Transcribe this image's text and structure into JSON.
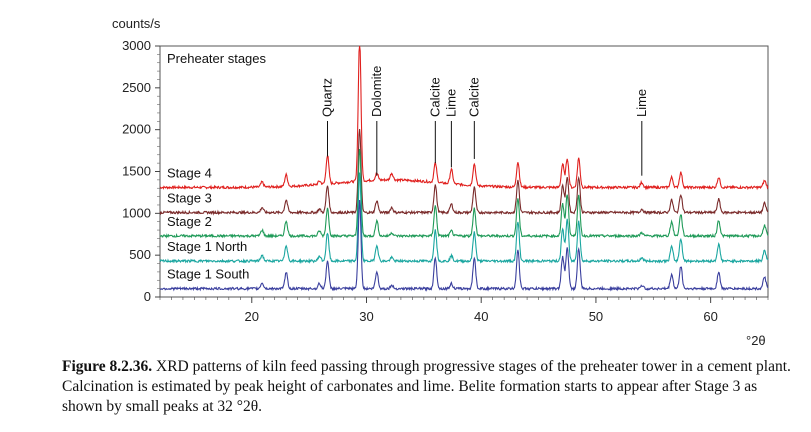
{
  "chart_data": {
    "type": "line",
    "ylabel": "counts/s",
    "xlabel": "°2θ",
    "inner_title": "Preheater stages",
    "xlim": [
      12,
      65
    ],
    "ylim": [
      0,
      3000
    ],
    "xticks": [
      20,
      30,
      40,
      50,
      60
    ],
    "yticks": [
      0,
      500,
      1000,
      1500,
      2000,
      2500,
      3000
    ],
    "series": [
      {
        "name": "Stage 4",
        "color": "#e0201e",
        "offset": 1310
      },
      {
        "name": "Stage 3",
        "color": "#7a2a2a",
        "offset": 1010
      },
      {
        "name": "Stage 2",
        "color": "#1f9a58",
        "offset": 730
      },
      {
        "name": "Stage 1 North",
        "color": "#1aa6a0",
        "offset": 430
      },
      {
        "name": "Stage 1 South",
        "color": "#3a3f9e",
        "offset": 100
      }
    ],
    "peaks": [
      {
        "x": 20.9,
        "heights": [
          60,
          60,
          70,
          70,
          70
        ]
      },
      {
        "x": 23.0,
        "heights": [
          140,
          150,
          180,
          190,
          190
        ]
      },
      {
        "x": 25.9,
        "heights": [
          40,
          40,
          60,
          60,
          60
        ]
      },
      {
        "x": 26.6,
        "heights": [
          340,
          320,
          330,
          330,
          330
        ]
      },
      {
        "x": 29.4,
        "heights": [
          1700,
          1000,
          1050,
          1050,
          1050
        ]
      },
      {
        "x": 30.9,
        "heights": [
          80,
          140,
          180,
          190,
          200
        ]
      },
      {
        "x": 32.2,
        "heights": [
          80,
          60,
          40,
          40,
          40
        ]
      },
      {
        "x": 36.0,
        "heights": [
          230,
          330,
          360,
          370,
          370
        ]
      },
      {
        "x": 37.4,
        "heights": [
          170,
          100,
          60,
          60,
          60
        ]
      },
      {
        "x": 39.4,
        "heights": [
          260,
          300,
          330,
          350,
          370
        ]
      },
      {
        "x": 43.2,
        "heights": [
          300,
          380,
          450,
          470,
          470
        ]
      },
      {
        "x": 47.1,
        "heights": [
          280,
          330,
          380,
          380,
          380
        ]
      },
      {
        "x": 47.5,
        "heights": [
          350,
          430,
          500,
          500,
          500
        ]
      },
      {
        "x": 48.5,
        "heights": [
          350,
          420,
          480,
          480,
          480
        ]
      },
      {
        "x": 54.0,
        "heights": [
          60,
          40,
          40,
          40,
          40
        ]
      },
      {
        "x": 56.6,
        "heights": [
          120,
          150,
          170,
          170,
          170
        ]
      },
      {
        "x": 57.4,
        "heights": [
          180,
          220,
          260,
          270,
          270
        ]
      },
      {
        "x": 60.7,
        "heights": [
          120,
          160,
          190,
          200,
          200
        ]
      },
      {
        "x": 64.7,
        "heights": [
          80,
          110,
          130,
          130,
          140
        ]
      }
    ],
    "annotations": [
      {
        "label": "Quartz",
        "x": 26.6,
        "y_tip": 1680
      },
      {
        "label": "Dolomite",
        "x": 30.9,
        "y_tip": 1450
      },
      {
        "label": "Calcite",
        "x": 36.0,
        "y_tip": 1600
      },
      {
        "label": "Lime",
        "x": 37.4,
        "y_tip": 1550
      },
      {
        "label": "Calcite",
        "x": 39.4,
        "y_tip": 1650
      },
      {
        "label": "Lime",
        "x": 54.0,
        "y_tip": 1450
      }
    ]
  },
  "caption": {
    "label": "Figure 8.2.36.",
    "text": "XRD patterns of kiln feed passing through progressive stages of the preheater tower in a cement plant. Calcination is estimated by peak height of carbonates and lime. Belite formation starts to appear after Stage 3 as shown by small peaks at 32 °2θ."
  }
}
